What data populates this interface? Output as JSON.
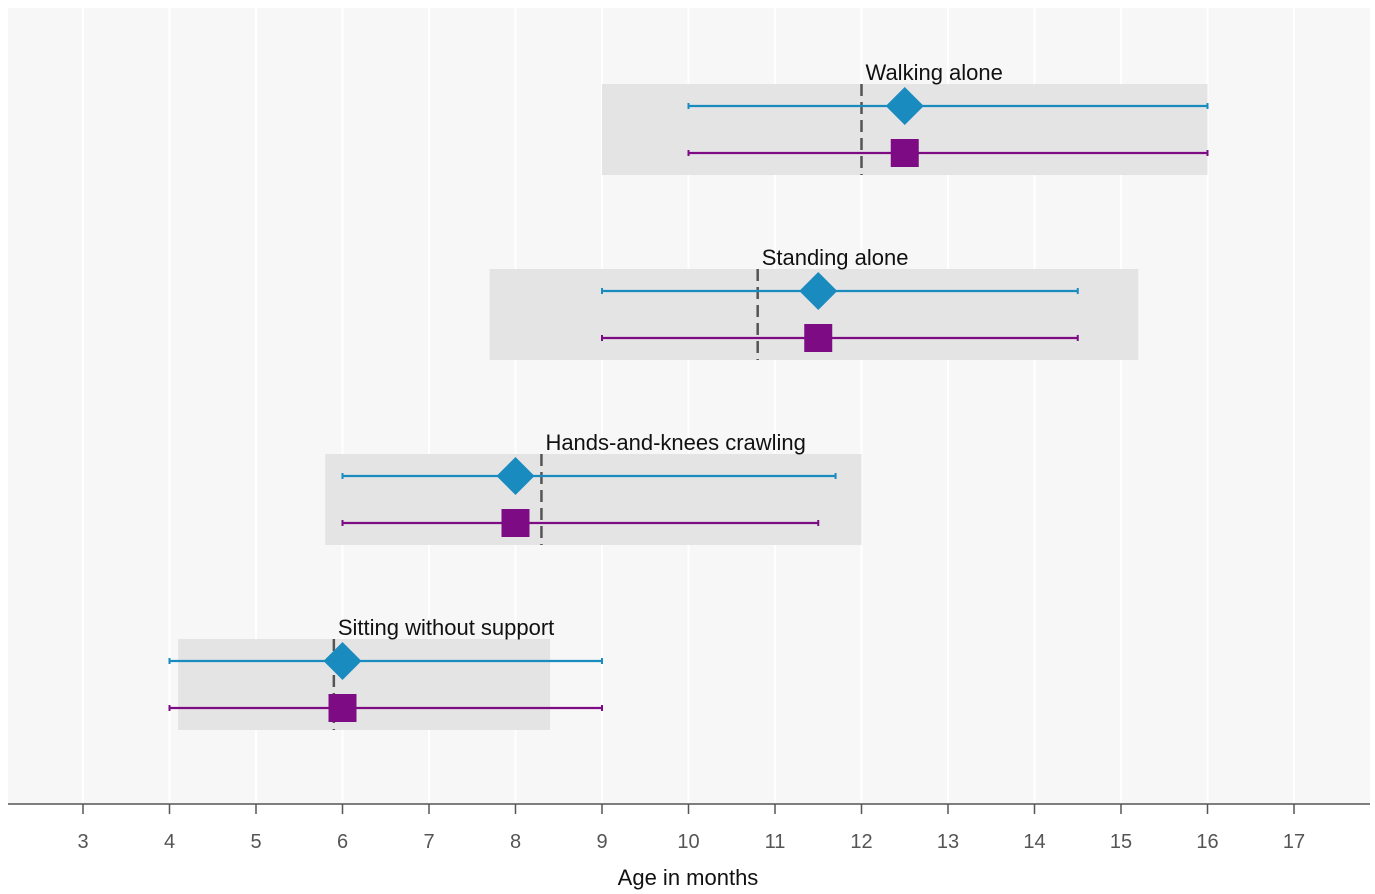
{
  "chart_data": {
    "type": "scatter",
    "title": "",
    "xlabel": "Age in months",
    "ylabel": "",
    "xlim": [
      2,
      18
    ],
    "x_ticks": [
      3,
      4,
      5,
      6,
      7,
      8,
      9,
      10,
      11,
      12,
      13,
      14,
      15,
      16,
      17
    ],
    "grid": true,
    "legend": "none",
    "colors": {
      "plot_background": "#f7f7f7",
      "window_band": "#e4e4e4",
      "gridline": "#ffffff",
      "series_a": "#1a8bbf",
      "series_b": "#7d0c84",
      "reference_line": "#555555"
    },
    "series_markers": [
      "diamond",
      "square"
    ],
    "milestones": [
      {
        "label": "Walking alone",
        "window": [
          9.0,
          16.0
        ],
        "reference": 12.0,
        "points": [
          {
            "value": 12.5,
            "low": 10.0,
            "high": 16.0
          },
          {
            "value": 12.5,
            "low": 10.0,
            "high": 16.0
          }
        ]
      },
      {
        "label": "Standing alone",
        "window": [
          7.7,
          15.2
        ],
        "reference": 10.8,
        "points": [
          {
            "value": 11.5,
            "low": 9.0,
            "high": 14.5
          },
          {
            "value": 11.5,
            "low": 9.0,
            "high": 14.5
          }
        ]
      },
      {
        "label": "Hands-and-knees crawling",
        "window": [
          5.8,
          12.0
        ],
        "reference": 8.3,
        "points": [
          {
            "value": 8.0,
            "low": 6.0,
            "high": 11.7
          },
          {
            "value": 8.0,
            "low": 6.0,
            "high": 11.5
          }
        ]
      },
      {
        "label": "Sitting without support",
        "window": [
          4.1,
          8.4
        ],
        "reference": 5.9,
        "points": [
          {
            "value": 6.0,
            "low": 4.0,
            "high": 9.0
          },
          {
            "value": 6.0,
            "low": 4.0,
            "high": 9.0
          }
        ]
      }
    ]
  }
}
